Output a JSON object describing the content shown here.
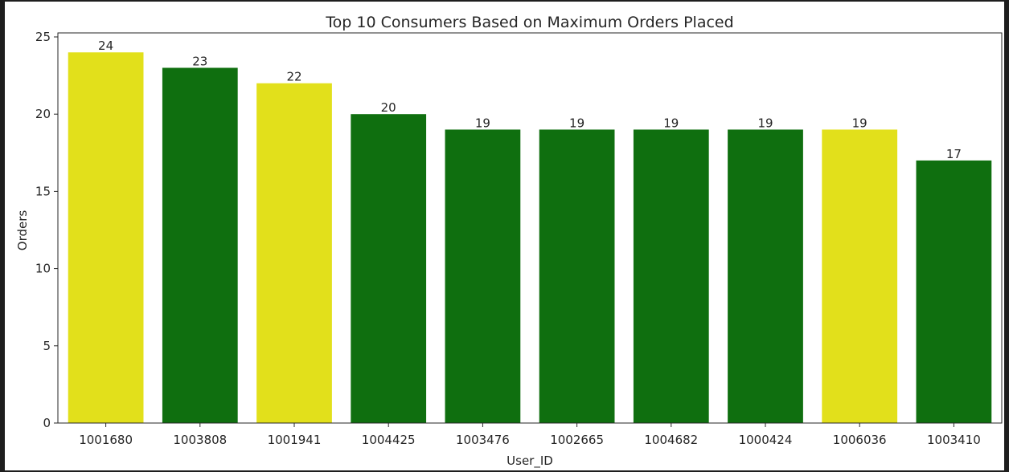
{
  "chart_data": {
    "type": "bar",
    "title": "Top 10 Consumers Based on Maximum Orders Placed",
    "xlabel": "User_ID",
    "ylabel": "Orders",
    "ylim": [
      0,
      25
    ],
    "yticks": [
      0,
      5,
      10,
      15,
      20,
      25
    ],
    "grid": false,
    "categories": [
      "1001680",
      "1003808",
      "1001941",
      "1004425",
      "1003476",
      "1002665",
      "1004682",
      "1000424",
      "1006036",
      "1003410"
    ],
    "values": [
      24,
      23,
      22,
      20,
      19,
      19,
      19,
      19,
      19,
      17
    ],
    "data_labels": [
      "24",
      "23",
      "22",
      "20",
      "19",
      "19",
      "19",
      "19",
      "19",
      "17"
    ],
    "bar_colors": [
      "#e2e01b",
      "#0f6f0f",
      "#e2e01b",
      "#0f6f0f",
      "#0f6f0f",
      "#0f6f0f",
      "#0f6f0f",
      "#0f6f0f",
      "#e2e01b",
      "#0f6f0f"
    ]
  },
  "colors": {
    "background": "#1e1e1e",
    "figure_face": "#ffffff",
    "axes": "#262626"
  }
}
